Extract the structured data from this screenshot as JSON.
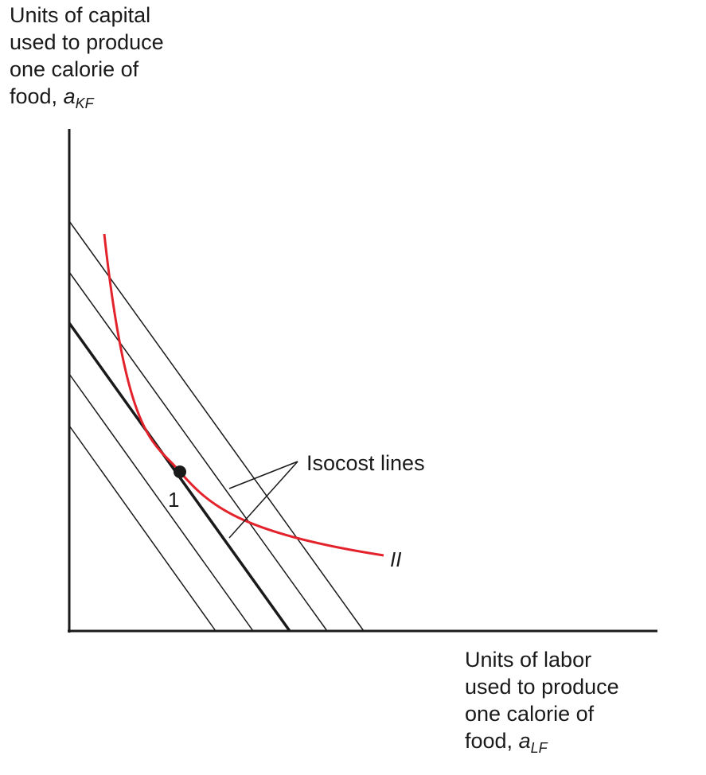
{
  "y_axis": {
    "lines": [
      "Units of capital",
      "used to produce",
      "one calorie of"
    ],
    "last_prefix": "food, ",
    "symbol": "a",
    "subscript": "KF"
  },
  "x_axis": {
    "lines": [
      "Units of labor",
      "used to produce",
      "one calorie of"
    ],
    "last_prefix": "food, ",
    "symbol": "a",
    "subscript": "LF"
  },
  "isocost_label": "Isocost lines",
  "curve_label": "II",
  "point_label": "1",
  "colors": {
    "curve": "#e3232c",
    "lines": "#1a1a1a"
  }
}
